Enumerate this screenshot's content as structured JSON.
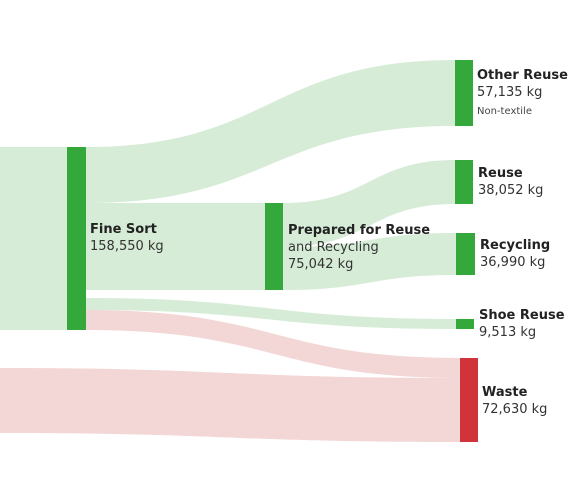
{
  "nodes": {
    "fine_sort": {
      "name": "Fine Sort",
      "value": "158,550 kg"
    },
    "prepared": {
      "name": "Prepared for Reuse",
      "name_line2": "and Recycling",
      "value": "75,042 kg"
    },
    "other_reuse": {
      "name": "Other Reuse",
      "value": "57,135 kg",
      "note": "Non-textile"
    },
    "reuse": {
      "name": "Reuse",
      "value": "38,052 kg"
    },
    "recycling": {
      "name": "Recycling",
      "value": "36,990 kg"
    },
    "shoe_reuse": {
      "name": "Shoe Reuse",
      "value": "9,513 kg"
    },
    "waste": {
      "name": "Waste",
      "value": "72,630 kg"
    }
  },
  "colors": {
    "node_green": "#34a83a",
    "node_red": "#d0343a",
    "link_green": "#d6ecd7",
    "link_red": "#f3d6d6"
  }
}
